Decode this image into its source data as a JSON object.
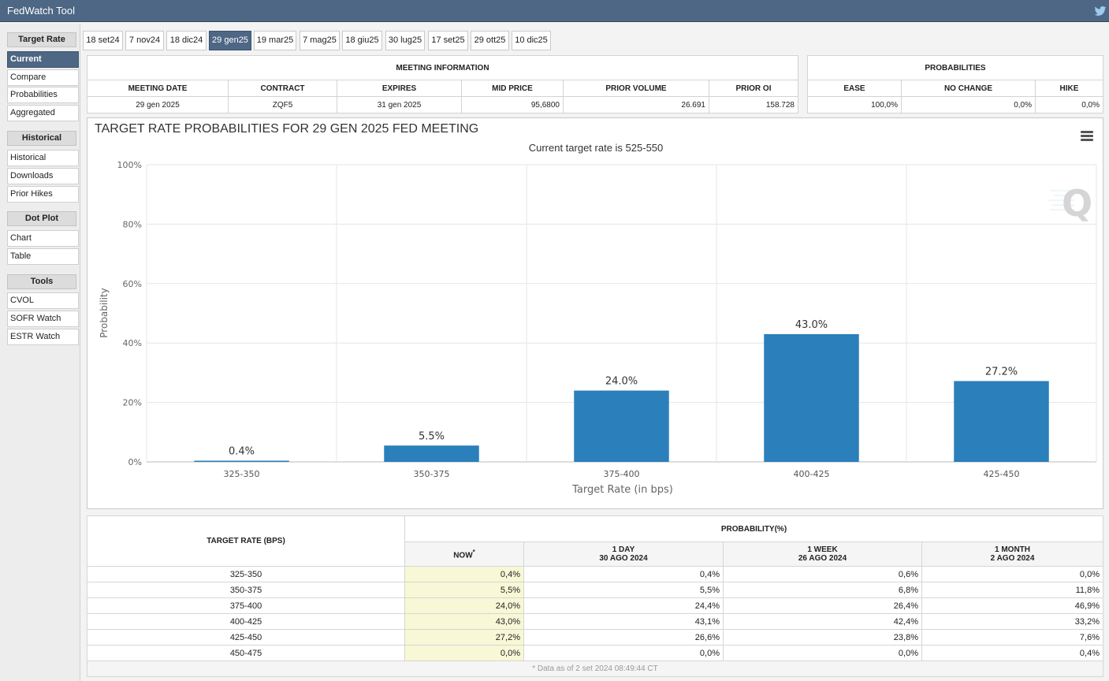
{
  "app": {
    "title": "FedWatch Tool"
  },
  "sidebar": {
    "sections": [
      {
        "header": "Target Rate",
        "items": [
          "Current",
          "Compare",
          "Probabilities",
          "Aggregated"
        ]
      },
      {
        "header": "Historical",
        "items": [
          "Historical",
          "Downloads",
          "Prior Hikes"
        ]
      },
      {
        "header": "Dot Plot",
        "items": [
          "Chart",
          "Table"
        ]
      },
      {
        "header": "Tools",
        "items": [
          "CVOL",
          "SOFR Watch",
          "ESTR Watch"
        ]
      }
    ],
    "active_item": "Current"
  },
  "tabs": [
    "18 set24",
    "7 nov24",
    "18 dic24",
    "29 gen25",
    "19 mar25",
    "7 mag25",
    "18 giu25",
    "30 lug25",
    "17 set25",
    "29 ott25",
    "10 dic25"
  ],
  "active_tab": "29 gen25",
  "meeting_info": {
    "header": "MEETING INFORMATION",
    "columns": [
      "MEETING DATE",
      "CONTRACT",
      "EXPIRES",
      "MID PRICE",
      "PRIOR VOLUME",
      "PRIOR OI"
    ],
    "values": [
      "29 gen 2025",
      "ZQF5",
      "31 gen 2025",
      "95,6800",
      "26.691",
      "158.728"
    ]
  },
  "probabilities_box": {
    "header": "PROBABILITIES",
    "columns": [
      "EASE",
      "NO CHANGE",
      "HIKE"
    ],
    "values": [
      "100,0%",
      "0,0%",
      "0,0%"
    ]
  },
  "chart": {
    "title": "TARGET RATE PROBABILITIES FOR 29 GEN 2025 FED MEETING",
    "subtitle": "Current target rate is 525-550"
  },
  "chart_data": {
    "type": "bar",
    "title": "TARGET RATE PROBABILITIES FOR 29 GEN 2025 FED MEETING",
    "subtitle": "Current target rate is 525-550",
    "categories": [
      "325-350",
      "350-375",
      "375-400",
      "400-425",
      "425-450"
    ],
    "values": [
      0.4,
      5.5,
      24.0,
      43.0,
      27.2
    ],
    "data_labels": [
      "0.4%",
      "5.5%",
      "24.0%",
      "43.0%",
      "27.2%"
    ],
    "xlabel": "Target Rate (in bps)",
    "ylabel": "Probability",
    "ylim": [
      0,
      100
    ],
    "yticks": [
      "0%",
      "20%",
      "40%",
      "60%",
      "80%",
      "100%"
    ],
    "bar_color": "#2b7fbb",
    "grid": true
  },
  "prob_table": {
    "header_target": "TARGET RATE (BPS)",
    "header_prob": "PROBABILITY(%)",
    "columns": [
      {
        "line1": "NOW",
        "line2": "",
        "star": "*"
      },
      {
        "line1": "1 DAY",
        "line2": "30 AGO 2024"
      },
      {
        "line1": "1 WEEK",
        "line2": "26 AGO 2024"
      },
      {
        "line1": "1 MONTH",
        "line2": "2 AGO 2024"
      }
    ],
    "rows": [
      {
        "rate": "325-350",
        "now": "0,4%",
        "day": "0,4%",
        "week": "0,6%",
        "month": "0,0%"
      },
      {
        "rate": "350-375",
        "now": "5,5%",
        "day": "5,5%",
        "week": "6,8%",
        "month": "11,8%"
      },
      {
        "rate": "375-400",
        "now": "24,0%",
        "day": "24,4%",
        "week": "26,4%",
        "month": "46,9%"
      },
      {
        "rate": "400-425",
        "now": "43,0%",
        "day": "43,1%",
        "week": "42,4%",
        "month": "33,2%"
      },
      {
        "rate": "425-450",
        "now": "27,2%",
        "day": "26,6%",
        "week": "23,8%",
        "month": "7,6%"
      },
      {
        "rate": "450-475",
        "now": "0,0%",
        "day": "0,0%",
        "week": "0,0%",
        "month": "0,4%"
      }
    ],
    "footnote": "* Data as of 2 set 2024 08:49:44 CT"
  }
}
